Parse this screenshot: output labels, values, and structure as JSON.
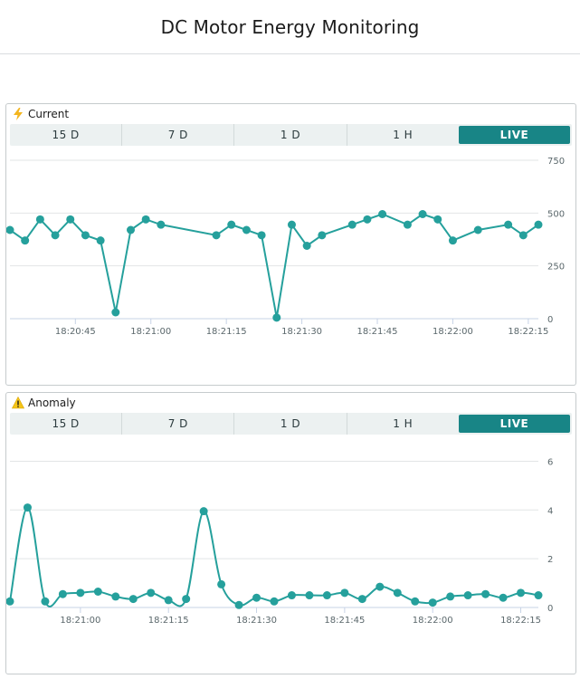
{
  "page": {
    "title": "DC Motor Energy Monitoring"
  },
  "range_options": [
    "15 D",
    "7 D",
    "1 D",
    "1 H",
    "LIVE"
  ],
  "active_range": "LIVE",
  "widgets": {
    "current": {
      "title": "Current",
      "icon": "lightning-icon"
    },
    "anomaly": {
      "title": "Anomaly",
      "icon": "warning-icon"
    }
  },
  "colors": {
    "series": "#25a09c",
    "active": "#188586"
  },
  "chart_data": [
    {
      "type": "line",
      "title": "Current",
      "x_ticks": [
        "18:20:45",
        "18:21:00",
        "18:21:15",
        "18:21:30",
        "18:21:45",
        "18:22:00",
        "18:22:15"
      ],
      "y_ticks": [
        "0",
        "250",
        "500",
        "750"
      ],
      "ylim": [
        0,
        750
      ],
      "time_range": [
        "18:20:32",
        "18:22:17"
      ],
      "x": [
        "18:20:32",
        "18:20:35",
        "18:20:38",
        "18:20:41",
        "18:20:44",
        "18:20:47",
        "18:20:50",
        "18:20:53",
        "18:20:56",
        "18:20:59",
        "18:21:02",
        "18:21:13",
        "18:21:16",
        "18:21:19",
        "18:21:22",
        "18:21:25",
        "18:21:28",
        "18:21:31",
        "18:21:34",
        "18:21:40",
        "18:21:43",
        "18:21:46",
        "18:21:51",
        "18:21:54",
        "18:21:57",
        "18:22:00",
        "18:22:05",
        "18:22:11",
        "18:22:14",
        "18:22:17"
      ],
      "y": [
        420,
        370,
        470,
        395,
        470,
        395,
        370,
        30,
        420,
        470,
        445,
        395,
        445,
        420,
        395,
        5,
        445,
        345,
        395,
        445,
        470,
        495,
        445,
        495,
        470,
        370,
        420,
        445,
        395,
        445
      ],
      "grid": true,
      "legend": "none"
    },
    {
      "type": "line",
      "title": "Anomaly",
      "smooth": true,
      "x_ticks": [
        "18:21:00",
        "18:21:15",
        "18:21:30",
        "18:21:45",
        "18:22:00",
        "18:22:15"
      ],
      "y_ticks": [
        "0",
        "2",
        "4",
        "6"
      ],
      "ylim": [
        0,
        6.5
      ],
      "time_range": [
        "18:20:48",
        "18:22:18"
      ],
      "x": [
        "18:20:48",
        "18:20:51",
        "18:20:54",
        "18:20:57",
        "18:21:00",
        "18:21:03",
        "18:21:06",
        "18:21:09",
        "18:21:12",
        "18:21:15",
        "18:21:18",
        "18:21:21",
        "18:21:24",
        "18:21:27",
        "18:21:30",
        "18:21:33",
        "18:21:36",
        "18:21:39",
        "18:21:42",
        "18:21:45",
        "18:21:48",
        "18:21:51",
        "18:21:54",
        "18:21:57",
        "18:22:00",
        "18:22:03",
        "18:22:06",
        "18:22:09",
        "18:22:12",
        "18:22:15",
        "18:22:18"
      ],
      "y": [
        0.25,
        4.1,
        0.25,
        0.55,
        0.6,
        0.65,
        0.45,
        0.35,
        0.6,
        0.3,
        0.35,
        3.95,
        0.95,
        0.1,
        0.4,
        0.25,
        0.5,
        0.5,
        0.5,
        0.6,
        0.35,
        0.85,
        0.6,
        0.25,
        0.2,
        0.45,
        0.5,
        0.55,
        0.4,
        0.6,
        0.5
      ],
      "grid": true,
      "legend": "none"
    }
  ]
}
